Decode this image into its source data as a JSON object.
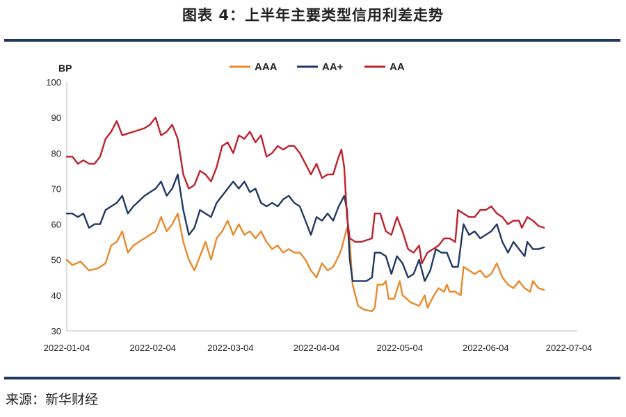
{
  "figure": {
    "title": "图表 4：上半年主要类型信用利差走势",
    "source": "来源：新华财经"
  },
  "chart_data": {
    "type": "line",
    "title": "",
    "ylabel": "BP",
    "xlabel": "",
    "ylim": [
      30,
      100
    ],
    "yticks": [
      30,
      40,
      50,
      60,
      70,
      80,
      90,
      100
    ],
    "xlim": [
      0,
      184
    ],
    "xticks": [
      {
        "x": 0,
        "label": "2022-01-04"
      },
      {
        "x": 31,
        "label": "2022-02-04"
      },
      {
        "x": 59,
        "label": "2022-03-04"
      },
      {
        "x": 90,
        "label": "2022-04-04"
      },
      {
        "x": 120,
        "label": "2022-05-04"
      },
      {
        "x": 151,
        "label": "2022-06-04"
      },
      {
        "x": 181,
        "label": "2022-07-04"
      }
    ],
    "grid": false,
    "legend_position": "top-center",
    "series": [
      {
        "name": "AAA",
        "color": "#e8892b",
        "points": [
          [
            0,
            50
          ],
          [
            2,
            48.5
          ],
          [
            5,
            49.5
          ],
          [
            8,
            47
          ],
          [
            11,
            47.5
          ],
          [
            14,
            49
          ],
          [
            16,
            54
          ],
          [
            18,
            55
          ],
          [
            20,
            58
          ],
          [
            22,
            52
          ],
          [
            24,
            54
          ],
          [
            28,
            56
          ],
          [
            32,
            58
          ],
          [
            34,
            62
          ],
          [
            36,
            58
          ],
          [
            38,
            60
          ],
          [
            40,
            63
          ],
          [
            42,
            55
          ],
          [
            44,
            50
          ],
          [
            46,
            47
          ],
          [
            48,
            51
          ],
          [
            50,
            55
          ],
          [
            52,
            50
          ],
          [
            54,
            56
          ],
          [
            56,
            58
          ],
          [
            58,
            61
          ],
          [
            60,
            57
          ],
          [
            62,
            60
          ],
          [
            64,
            57
          ],
          [
            66,
            58
          ],
          [
            68,
            56
          ],
          [
            70,
            58
          ],
          [
            72,
            55
          ],
          [
            74,
            53
          ],
          [
            76,
            54
          ],
          [
            78,
            52
          ],
          [
            80,
            53
          ],
          [
            82,
            52
          ],
          [
            84,
            52
          ],
          [
            86,
            50
          ],
          [
            88,
            47
          ],
          [
            90,
            45
          ],
          [
            92,
            49
          ],
          [
            94,
            47
          ],
          [
            96,
            48
          ],
          [
            98,
            51
          ],
          [
            99,
            53
          ],
          [
            101,
            59
          ],
          [
            102,
            55
          ],
          [
            103,
            43
          ],
          [
            105,
            37
          ],
          [
            107,
            36
          ],
          [
            110,
            35.5
          ],
          [
            111,
            36.5
          ],
          [
            112,
            43
          ],
          [
            114,
            43
          ],
          [
            115,
            44
          ],
          [
            116,
            39
          ],
          [
            118,
            39
          ],
          [
            120,
            44
          ],
          [
            121,
            40
          ],
          [
            124,
            38
          ],
          [
            127,
            37
          ],
          [
            129,
            40
          ],
          [
            130,
            36.5
          ],
          [
            132,
            39.5
          ],
          [
            134,
            42
          ],
          [
            136,
            41
          ],
          [
            137,
            43
          ],
          [
            138,
            41
          ],
          [
            140,
            41
          ],
          [
            142,
            40
          ],
          [
            143,
            48
          ],
          [
            145,
            47
          ],
          [
            147,
            46
          ],
          [
            149,
            47
          ],
          [
            151,
            45
          ],
          [
            153,
            46
          ],
          [
            155,
            49
          ],
          [
            157,
            45
          ],
          [
            159,
            43
          ],
          [
            161,
            42
          ],
          [
            163,
            44
          ],
          [
            165,
            42
          ],
          [
            167,
            41
          ],
          [
            168,
            44
          ],
          [
            170,
            42
          ],
          [
            172,
            41.5
          ]
        ]
      },
      {
        "name": "AA+",
        "color": "#1f3864",
        "points": [
          [
            0,
            63
          ],
          [
            2,
            63
          ],
          [
            4,
            62
          ],
          [
            6,
            63
          ],
          [
            8,
            59
          ],
          [
            10,
            60
          ],
          [
            12,
            60
          ],
          [
            14,
            64
          ],
          [
            16,
            65
          ],
          [
            18,
            66
          ],
          [
            20,
            68
          ],
          [
            22,
            63
          ],
          [
            24,
            65
          ],
          [
            28,
            68
          ],
          [
            32,
            70
          ],
          [
            34,
            72
          ],
          [
            36,
            68
          ],
          [
            38,
            70
          ],
          [
            40,
            74
          ],
          [
            42,
            64
          ],
          [
            44,
            57
          ],
          [
            46,
            59
          ],
          [
            48,
            64
          ],
          [
            50,
            63
          ],
          [
            52,
            62
          ],
          [
            54,
            66
          ],
          [
            56,
            68
          ],
          [
            58,
            70
          ],
          [
            60,
            72
          ],
          [
            62,
            70
          ],
          [
            64,
            72
          ],
          [
            66,
            69
          ],
          [
            68,
            70
          ],
          [
            70,
            66
          ],
          [
            72,
            65
          ],
          [
            74,
            66
          ],
          [
            76,
            65
          ],
          [
            78,
            67
          ],
          [
            80,
            68
          ],
          [
            82,
            66
          ],
          [
            84,
            65
          ],
          [
            86,
            61
          ],
          [
            88,
            57
          ],
          [
            90,
            62
          ],
          [
            92,
            61
          ],
          [
            94,
            63
          ],
          [
            96,
            61
          ],
          [
            98,
            65
          ],
          [
            100,
            68
          ],
          [
            101,
            64
          ],
          [
            102,
            50
          ],
          [
            103,
            44
          ],
          [
            105,
            44
          ],
          [
            108,
            44
          ],
          [
            110,
            45
          ],
          [
            111,
            52
          ],
          [
            113,
            52
          ],
          [
            115,
            51
          ],
          [
            117,
            46
          ],
          [
            119,
            51
          ],
          [
            121,
            49
          ],
          [
            123,
            45
          ],
          [
            125,
            46
          ],
          [
            127,
            50
          ],
          [
            129,
            44
          ],
          [
            131,
            47
          ],
          [
            133,
            53
          ],
          [
            135,
            52
          ],
          [
            137,
            52
          ],
          [
            139,
            48
          ],
          [
            141,
            48
          ],
          [
            143,
            60
          ],
          [
            145,
            57
          ],
          [
            147,
            58
          ],
          [
            149,
            56
          ],
          [
            151,
            57
          ],
          [
            153,
            58
          ],
          [
            155,
            60
          ],
          [
            157,
            55
          ],
          [
            159,
            52
          ],
          [
            161,
            55
          ],
          [
            163,
            53
          ],
          [
            165,
            51
          ],
          [
            166,
            55
          ],
          [
            168,
            53
          ],
          [
            170,
            53
          ],
          [
            172,
            53.5
          ]
        ]
      },
      {
        "name": "AA",
        "color": "#c0202a",
        "points": [
          [
            0,
            79
          ],
          [
            2,
            79
          ],
          [
            4,
            77
          ],
          [
            6,
            78
          ],
          [
            8,
            77
          ],
          [
            10,
            77
          ],
          [
            12,
            79
          ],
          [
            14,
            84
          ],
          [
            16,
            86
          ],
          [
            18,
            89
          ],
          [
            20,
            85
          ],
          [
            24,
            86
          ],
          [
            28,
            87
          ],
          [
            30,
            88
          ],
          [
            32,
            90
          ],
          [
            34,
            85
          ],
          [
            36,
            86
          ],
          [
            38,
            88
          ],
          [
            40,
            84
          ],
          [
            42,
            74
          ],
          [
            44,
            70
          ],
          [
            46,
            71
          ],
          [
            48,
            75
          ],
          [
            50,
            74
          ],
          [
            52,
            72
          ],
          [
            54,
            76
          ],
          [
            56,
            82
          ],
          [
            58,
            83
          ],
          [
            60,
            80
          ],
          [
            62,
            85
          ],
          [
            64,
            84
          ],
          [
            66,
            86
          ],
          [
            68,
            83
          ],
          [
            70,
            85
          ],
          [
            72,
            79
          ],
          [
            74,
            80
          ],
          [
            76,
            82
          ],
          [
            78,
            81
          ],
          [
            80,
            82
          ],
          [
            82,
            82
          ],
          [
            84,
            80
          ],
          [
            86,
            77
          ],
          [
            88,
            74
          ],
          [
            90,
            77
          ],
          [
            92,
            73
          ],
          [
            94,
            74
          ],
          [
            96,
            74
          ],
          [
            98,
            79
          ],
          [
            99,
            81
          ],
          [
            100,
            76
          ],
          [
            101,
            62
          ],
          [
            102,
            56
          ],
          [
            104,
            55
          ],
          [
            106,
            55
          ],
          [
            108,
            55.5
          ],
          [
            110,
            56
          ],
          [
            111,
            63
          ],
          [
            113,
            63
          ],
          [
            115,
            58
          ],
          [
            117,
            57
          ],
          [
            119,
            62
          ],
          [
            121,
            58
          ],
          [
            123,
            53
          ],
          [
            125,
            52
          ],
          [
            127,
            54
          ],
          [
            128,
            49
          ],
          [
            130,
            52
          ],
          [
            132,
            53
          ],
          [
            134,
            54
          ],
          [
            136,
            56
          ],
          [
            138,
            56
          ],
          [
            140,
            55
          ],
          [
            141,
            64
          ],
          [
            143,
            63
          ],
          [
            145,
            62
          ],
          [
            147,
            62
          ],
          [
            149,
            64
          ],
          [
            151,
            64
          ],
          [
            153,
            65
          ],
          [
            155,
            63
          ],
          [
            157,
            62
          ],
          [
            159,
            60
          ],
          [
            161,
            61
          ],
          [
            163,
            61
          ],
          [
            164,
            59
          ],
          [
            166,
            62
          ],
          [
            168,
            61
          ],
          [
            170,
            59.5
          ],
          [
            172,
            59
          ]
        ]
      }
    ]
  }
}
